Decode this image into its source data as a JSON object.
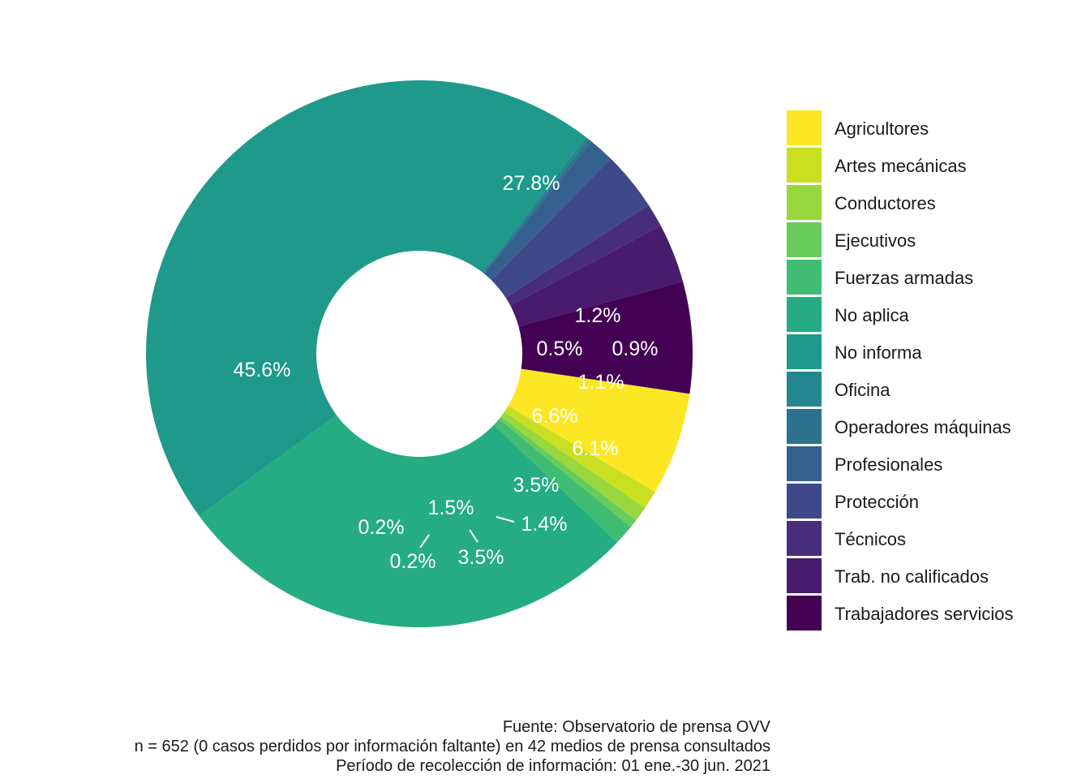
{
  "chart_data": {
    "type": "pie",
    "variant": "donut",
    "categories": [
      "Agricultores",
      "Artes mecánicas",
      "Conductores",
      "Ejecutivos",
      "Fuerzas armadas",
      "No aplica",
      "No informa",
      "Oficina",
      "Operadores máquinas",
      "Profesionales",
      "Protección",
      "Técnicos",
      "Trab. no calificados",
      "Trabajadores servicios"
    ],
    "values": [
      6.1,
      1.1,
      0.9,
      0.5,
      1.2,
      27.8,
      45.6,
      0.2,
      0.2,
      1.5,
      3.5,
      1.4,
      3.5,
      6.6
    ],
    "value_labels": [
      "6.1%",
      "1.1%",
      "0.9%",
      "0.5%",
      "1.2%",
      "27.8%",
      "45.6%",
      "0.2%",
      "0.2%",
      "1.5%",
      "3.5%",
      "1.4%",
      "3.5%",
      "6.6%"
    ],
    "colors": [
      "#FDE725",
      "#C8E020",
      "#98D83E",
      "#67CC5C",
      "#40BD72",
      "#25AC82",
      "#1F998A",
      "#24868E",
      "#2C728E",
      "#355F8D",
      "#3F4889",
      "#472D7B",
      "#481B6D",
      "#440154"
    ],
    "legend_position": "right"
  },
  "caption": {
    "line1": "Fuente: Observatorio de prensa OVV",
    "line2": "n = 652 (0 casos perdidos por información faltante) en 42 medios de prensa consultados",
    "line3": "Período de recolección de información: 01 ene.-30 jun. 2021"
  }
}
